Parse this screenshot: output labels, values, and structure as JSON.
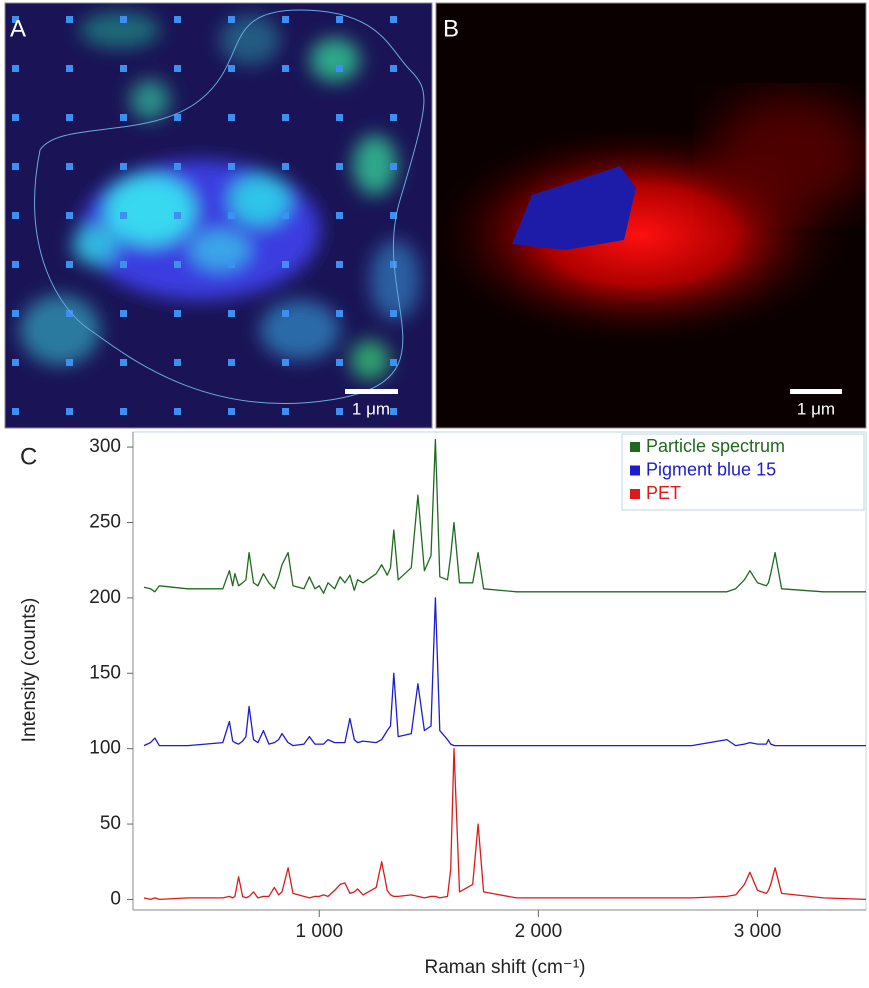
{
  "figure": {
    "panels": [
      {
        "label": "A",
        "scale_bar": "1 μm"
      },
      {
        "label": "B",
        "scale_bar": "1 μm"
      },
      {
        "label": "C"
      }
    ]
  },
  "chart_data": {
    "type": "line",
    "xlabel": "Raman shift (cm⁻¹)",
    "ylabel": "Intensity (counts)",
    "xlim": [
      150,
      3495
    ],
    "ylim": [
      -7,
      310
    ],
    "xticks": [
      {
        "value": 1000,
        "label": "1 000"
      },
      {
        "value": 2000,
        "label": "2 000"
      },
      {
        "value": 3000,
        "label": "3 000"
      }
    ],
    "yticks": [
      0,
      50,
      100,
      150,
      200,
      250,
      300
    ],
    "grid": false,
    "legend": "upper right",
    "x": [
      200,
      230,
      250,
      270,
      400,
      560,
      590,
      605,
      615,
      632,
      650,
      665,
      680,
      700,
      720,
      745,
      770,
      795,
      815,
      830,
      858,
      880,
      930,
      955,
      980,
      1000,
      1020,
      1040,
      1070,
      1095,
      1117,
      1140,
      1160,
      1175,
      1200,
      1260,
      1285,
      1310,
      1325,
      1340,
      1360,
      1420,
      1450,
      1480,
      1510,
      1530,
      1550,
      1585,
      1600,
      1615,
      1640,
      1700,
      1725,
      1750,
      1900,
      2100,
      2400,
      2700,
      2860,
      2900,
      2940,
      2965,
      3000,
      3040,
      3050,
      3060,
      3080,
      3110,
      3300,
      3495
    ],
    "series": [
      {
        "name": "Particle spectrum",
        "color": "#1f6a1f",
        "values": [
          207,
          206,
          204,
          208,
          206,
          206,
          218,
          208,
          216,
          208,
          210,
          212,
          230,
          210,
          208,
          216,
          210,
          206,
          214,
          222,
          230,
          208,
          206,
          214,
          206,
          208,
          203,
          210,
          206,
          214,
          210,
          215,
          205,
          212,
          210,
          216,
          222,
          215,
          220,
          245,
          212,
          220,
          268,
          218,
          228,
          305,
          214,
          212,
          228,
          250,
          210,
          210,
          230,
          206,
          204,
          204,
          204,
          204,
          204,
          206,
          212,
          218,
          210,
          208,
          210,
          216,
          230,
          206,
          204,
          204
        ]
      },
      {
        "name": "Pigment blue 15",
        "color": "#1c1cd0",
        "values": [
          102,
          104,
          107,
          102,
          102,
          104,
          118,
          105,
          104,
          103,
          105,
          108,
          128,
          106,
          104,
          112,
          103,
          104,
          106,
          110,
          104,
          102,
          103,
          108,
          103,
          103,
          103,
          106,
          104,
          104,
          104,
          120,
          106,
          104,
          105,
          104,
          106,
          112,
          115,
          150,
          108,
          110,
          143,
          112,
          115,
          200,
          112,
          106,
          103,
          102,
          102,
          102,
          102,
          102,
          102,
          102,
          102,
          102,
          106,
          102,
          103,
          104,
          103,
          103,
          106,
          103,
          102,
          102,
          102,
          102
        ]
      },
      {
        "name": "PET",
        "color": "#dd1a1a",
        "values": [
          1,
          0,
          1,
          0,
          1,
          1,
          2,
          1,
          2,
          15,
          2,
          1,
          2,
          5,
          1,
          2,
          2,
          8,
          3,
          5,
          21,
          4,
          2,
          1,
          2,
          2,
          3,
          2,
          6,
          10,
          11,
          4,
          5,
          7,
          3,
          8,
          25,
          6,
          3,
          2,
          2,
          3,
          2,
          1,
          2,
          2,
          1,
          2,
          20,
          100,
          5,
          10,
          50,
          5,
          1,
          1,
          1,
          1,
          2,
          3,
          10,
          18,
          6,
          4,
          6,
          10,
          21,
          4,
          1,
          0
        ]
      }
    ]
  }
}
